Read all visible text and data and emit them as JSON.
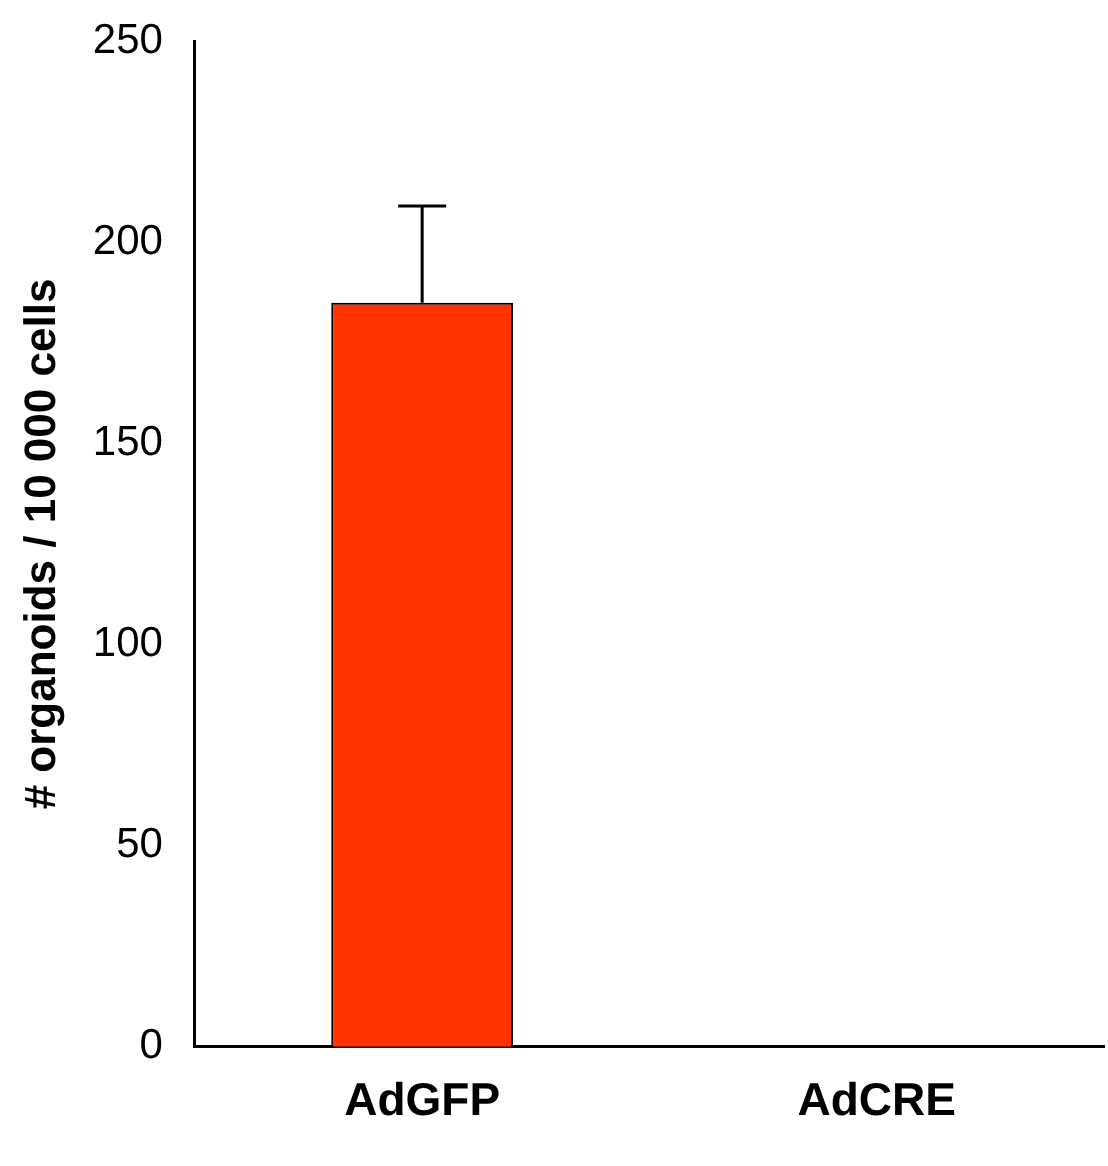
{
  "chart_data": {
    "type": "bar",
    "ylabel": "# organoids / 10 000 cells",
    "categories": [
      "AdGFP",
      "AdCRE"
    ],
    "values": [
      185,
      0
    ],
    "color": "#ff3300",
    "errors": [
      [
        185,
        209
      ],
      null
    ],
    "ylim": [
      0,
      250
    ],
    "yticks": [
      0,
      50,
      100,
      150,
      200,
      250
    ],
    "grid": false,
    "legend": false
  }
}
